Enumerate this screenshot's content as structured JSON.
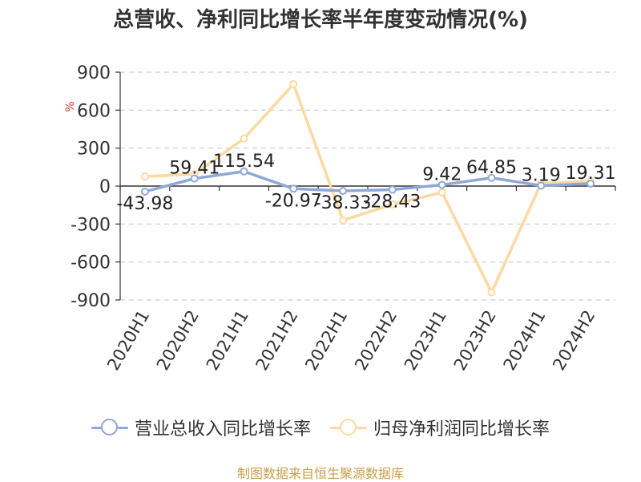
{
  "chart_data": {
    "type": "line",
    "title": "总营收、净利同比增长率半年度变动情况(%)",
    "ylabel": "%",
    "ylim": [
      -900,
      900
    ],
    "yticks": [
      900,
      600,
      300,
      0,
      -300,
      -600,
      -900
    ],
    "ytick_labels": [
      "900",
      "600",
      "300",
      "0",
      "-300",
      "-600",
      "-900"
    ],
    "categories": [
      "2020H1",
      "2020H2",
      "2021H1",
      "2021H2",
      "2022H1",
      "2022H2",
      "2023H1",
      "2023H2",
      "2024H1",
      "2024H2"
    ],
    "grid": true,
    "legend_position": "bottom",
    "series": [
      {
        "name": "营业总收入同比增长率",
        "color": "#8fa8d8",
        "values": [
          -43.98,
          59.41,
          115.54,
          -20.97,
          -38.33,
          -28.43,
          9.42,
          64.85,
          3.19,
          19.31
        ],
        "data_labels": [
          "-43.98",
          "59.41",
          "115.54",
          "-20.97",
          "-38.33",
          "-28.43",
          "9.42",
          "64.85",
          "3.19",
          "19.31"
        ]
      },
      {
        "name": "归母净利润同比增长率",
        "color": "#fcd9a0",
        "values": [
          75,
          95,
          375,
          805,
          -270,
          -145,
          -50,
          -840,
          20,
          40
        ]
      }
    ]
  },
  "source": "制图数据来自恒生聚源数据库"
}
